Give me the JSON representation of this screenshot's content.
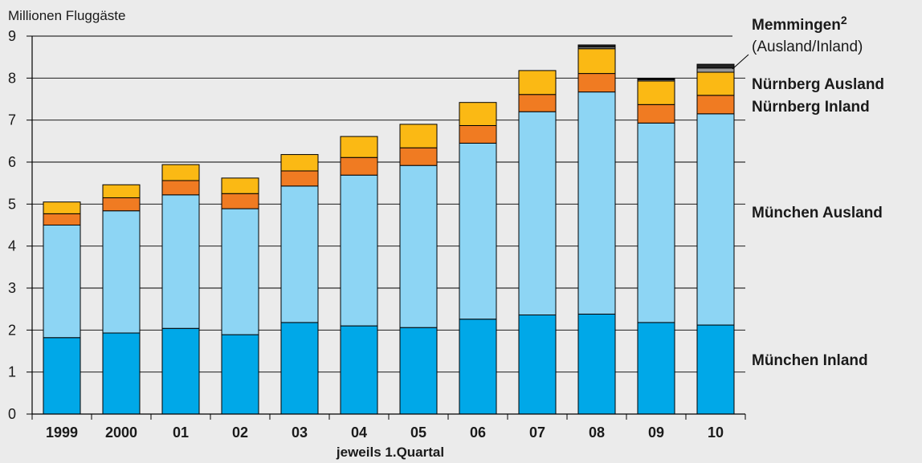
{
  "chart_data": {
    "type": "bar",
    "stacked": true,
    "title": "",
    "ylabel": "Millionen Fluggäste",
    "xlabel": "jeweils 1.Quartal",
    "ylim": [
      0,
      9
    ],
    "yticks": [
      0,
      1,
      2,
      3,
      4,
      5,
      6,
      7,
      8,
      9
    ],
    "grid": true,
    "categories": [
      "1999",
      "2000",
      "01",
      "02",
      "03",
      "04",
      "05",
      "06",
      "07",
      "08",
      "09",
      "10"
    ],
    "series": [
      {
        "name": "München Inland",
        "color": "#00a8e8",
        "values": [
          1.82,
          1.93,
          2.04,
          1.89,
          2.18,
          2.1,
          2.06,
          2.26,
          2.36,
          2.38,
          2.18,
          2.12
        ]
      },
      {
        "name": "München Ausland",
        "color": "#8dd5f4",
        "values": [
          2.68,
          2.91,
          3.18,
          3.0,
          3.25,
          3.59,
          3.86,
          4.19,
          4.84,
          5.29,
          4.75,
          5.03
        ]
      },
      {
        "name": "Nürnberg Inland",
        "color": "#f07b22",
        "values": [
          0.27,
          0.31,
          0.34,
          0.36,
          0.36,
          0.42,
          0.42,
          0.42,
          0.41,
          0.44,
          0.44,
          0.44
        ]
      },
      {
        "name": "Nürnberg Ausland",
        "color": "#fbb914",
        "values": [
          0.28,
          0.31,
          0.38,
          0.37,
          0.39,
          0.5,
          0.56,
          0.55,
          0.57,
          0.59,
          0.56,
          0.55
        ]
      },
      {
        "name": "Memmingen Inland",
        "color": "#999999",
        "values": [
          0,
          0,
          0,
          0,
          0,
          0,
          0,
          0,
          0,
          0.04,
          0.03,
          0.1
        ]
      },
      {
        "name": "Memmingen Ausland",
        "color": "#222222",
        "values": [
          0,
          0,
          0,
          0,
          0,
          0,
          0,
          0,
          0,
          0.05,
          0.03,
          0.09
        ]
      }
    ],
    "legend": {
      "memmingen_title": "Memmingen",
      "memmingen_sup": "2",
      "memmingen_sub": "(Ausland/Inland)",
      "nuernberg_ausland": "Nürnberg Ausland",
      "nuernberg_inland": "Nürnberg Inland",
      "muenchen_ausland": "München Ausland",
      "muenchen_inland": "München Inland"
    }
  }
}
